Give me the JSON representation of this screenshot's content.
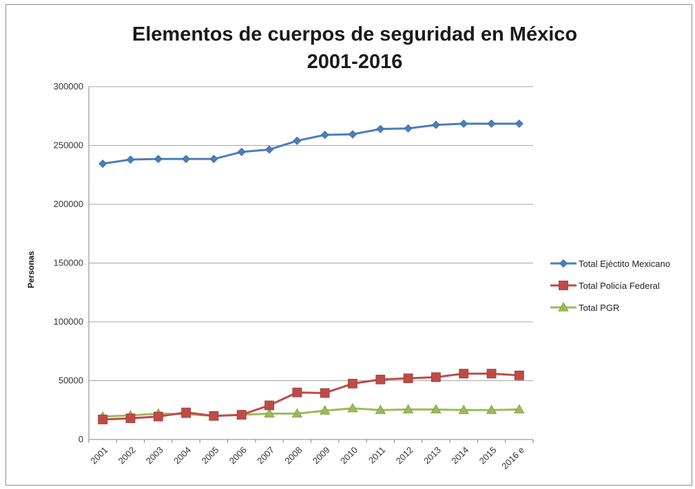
{
  "chart_data": {
    "type": "line",
    "title": "Elementos de cuerpos de seguridad en México",
    "subtitle": "2001-2016",
    "ylabel": "Personas",
    "xlabel": "",
    "ylim": [
      0,
      300000
    ],
    "yticks": [
      "0",
      "50000",
      "100000",
      "150000",
      "200000",
      "250000",
      "300000"
    ],
    "grid": true,
    "legend_position": "right",
    "categories": [
      "2001",
      "2002",
      "2003",
      "2004",
      "2005",
      "2006",
      "2007",
      "2008",
      "2009",
      "2010",
      "2011",
      "2012",
      "2013",
      "2014",
      "2015",
      "2016 e"
    ],
    "series": [
      {
        "name": "Total  Ejéctito Mexicano",
        "color": "#4a7ebb",
        "marker": "diamond",
        "values": [
          234500,
          238000,
          238500,
          238500,
          238500,
          244500,
          246500,
          254000,
          259000,
          259500,
          264000,
          264500,
          267500,
          268500,
          268500,
          268500
        ]
      },
      {
        "name": "Total Policía Federal",
        "color": "#be4b48",
        "marker": "square",
        "values": [
          17000,
          18000,
          19500,
          23000,
          20000,
          21000,
          29000,
          40000,
          39500,
          47500,
          51000,
          52000,
          53000,
          56000,
          56000,
          54500
        ]
      },
      {
        "name": "Total PGR",
        "color": "#9bbb59",
        "marker": "triangle",
        "values": [
          19500,
          20500,
          22000,
          21500,
          20000,
          21000,
          22000,
          22000,
          24500,
          26500,
          25000,
          25500,
          25500,
          25000,
          25000,
          25500
        ]
      }
    ]
  }
}
